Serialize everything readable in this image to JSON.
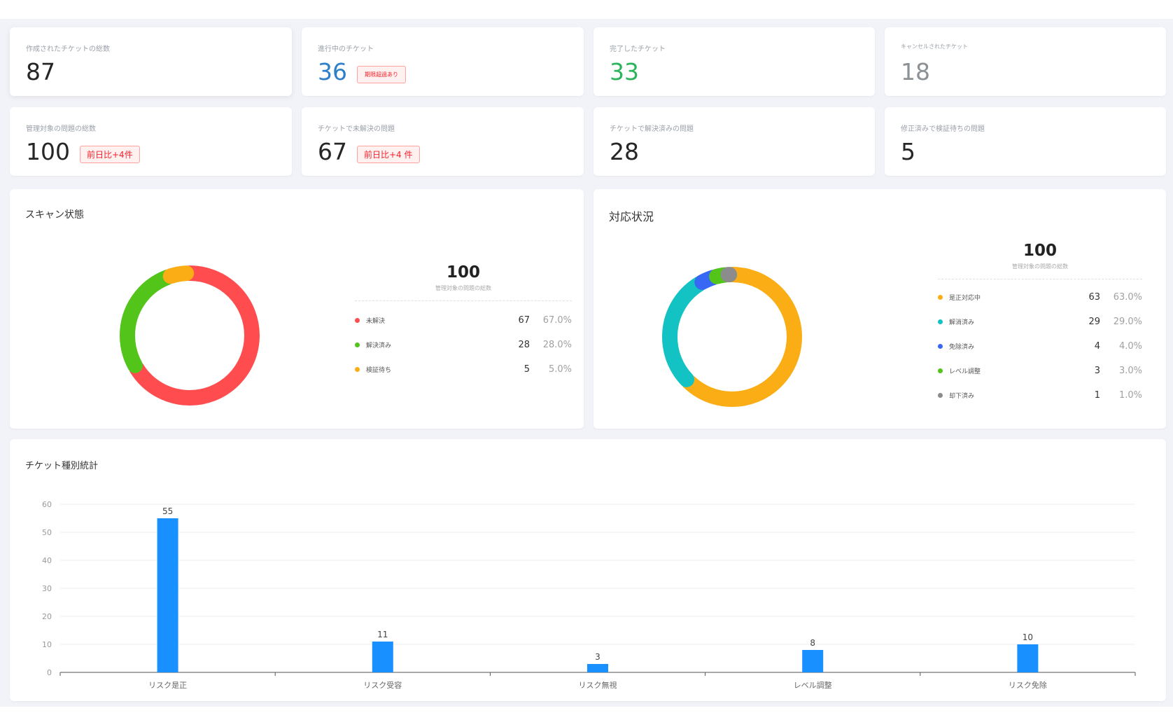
{
  "stats": [
    {
      "label": "作成されたチケットの総数",
      "value": "87",
      "color": "#262626",
      "badge": ""
    },
    {
      "label": "進行中のチケット",
      "value": "36",
      "color": "#2f7fc8",
      "badge": "期限超過あり"
    },
    {
      "label": "完了したチケット",
      "value": "33",
      "color": "#2db35c",
      "badge": ""
    },
    {
      "label": "キャンセルされたチケット",
      "value": "18",
      "color": "#8c9196",
      "badge": ""
    },
    {
      "label": "管理対象の問題の総数",
      "value": "100",
      "color": "#262626",
      "badge": "前日比+4件"
    },
    {
      "label": "チケットで未解決の問題",
      "value": "67",
      "color": "#262626",
      "badge": "前日比+4 件"
    },
    {
      "label": "チケットで解決済みの問題",
      "value": "28",
      "color": "#262626",
      "badge": ""
    },
    {
      "label": "修正済みで検証待ちの問題",
      "value": "5",
      "color": "#262626",
      "badge": ""
    }
  ],
  "scan_panel": {
    "title": "スキャン状態",
    "total": "100",
    "total_label": "管理対象の問題の総数",
    "items": [
      {
        "name": "未解決",
        "count": "67",
        "pct": "67.0%",
        "value": 67,
        "color": "#ff4d4f"
      },
      {
        "name": "解決済み",
        "count": "28",
        "pct": "28.0%",
        "value": 28,
        "color": "#52c41a"
      },
      {
        "name": "検証待ち",
        "count": "5",
        "pct": "5.0%",
        "value": 5,
        "color": "#faad14"
      }
    ]
  },
  "response_panel": {
    "title": "対応状況",
    "total": "100",
    "total_label": "管理対象の問題の総数",
    "items": [
      {
        "name": "是正対応中",
        "count": "63",
        "pct": "63.0%",
        "value": 63,
        "color": "#faad14"
      },
      {
        "name": "解消済み",
        "count": "29",
        "pct": "29.0%",
        "value": 29,
        "color": "#13c2c2"
      },
      {
        "name": "免除済み",
        "count": "4",
        "pct": "4.0%",
        "value": 4,
        "color": "#3867f5"
      },
      {
        "name": "レベル調整",
        "count": "3",
        "pct": "3.0%",
        "value": 3,
        "color": "#52c41a"
      },
      {
        "name": "却下済み",
        "count": "1",
        "pct": "1.0%",
        "value": 1,
        "color": "#8c8c8c"
      }
    ]
  },
  "bar_panel": {
    "title": "チケット種別統計"
  },
  "chart_data": {
    "type": "bar",
    "categories": [
      "リスク是正",
      "リスク受容",
      "リスク無視",
      "レベル調整",
      "リスク免除"
    ],
    "values": [
      55,
      11,
      3,
      8,
      10
    ],
    "data_labels": [
      "55",
      "11",
      "3",
      "8",
      "10"
    ],
    "yticks": [
      "0",
      "10",
      "20",
      "30",
      "40",
      "50",
      "60"
    ],
    "ylim": [
      0,
      60
    ],
    "grid": true,
    "bar_color": "#1890ff"
  }
}
